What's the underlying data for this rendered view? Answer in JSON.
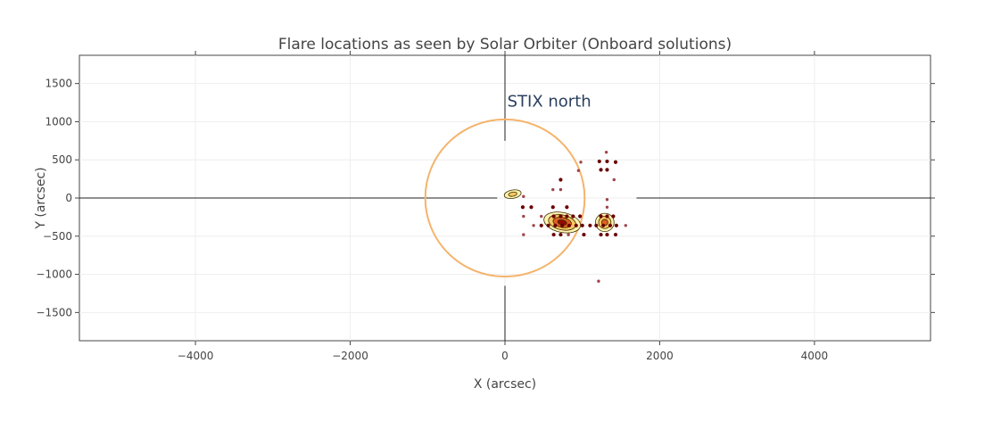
{
  "chart_data": {
    "type": "scatter",
    "title": "Flare locations as seen by Solar Orbiter (Onboard solutions)",
    "xlabel": "X (arcsec)",
    "ylabel": "Y (arcsec)",
    "xlim": [
      -5500,
      5500
    ],
    "ylim": [
      -1870,
      1870
    ],
    "x_ticks": [
      -4000,
      -2000,
      0,
      2000,
      4000
    ],
    "y_ticks": [
      1500,
      1000,
      500,
      0,
      -500,
      -1000,
      -1500
    ],
    "x_tick_labels": [
      "−4000",
      "−2000",
      "0",
      "2000",
      "4000"
    ],
    "y_tick_labels": [
      "1500",
      "1000",
      "500",
      "0",
      "−500",
      "−1000",
      "−1500"
    ],
    "grid": true,
    "annotation": "STIX north",
    "solar_disk": {
      "center": [
        0,
        0
      ],
      "radius": 1030,
      "color": "#f5b36b"
    },
    "colors": {
      "point_dark": "#6b0000",
      "point_light": "#a0454a",
      "contour_fill": "#fff2a8",
      "contour_line": "#3d3000",
      "contour_core": "#8b0000"
    },
    "points": [
      {
        "x": 980,
        "y": 470,
        "c": "light"
      },
      {
        "x": 1310,
        "y": 600,
        "c": "light"
      },
      {
        "x": 1220,
        "y": 480,
        "c": "dark"
      },
      {
        "x": 1320,
        "y": 480,
        "c": "dark"
      },
      {
        "x": 1430,
        "y": 470,
        "c": "dark"
      },
      {
        "x": 1240,
        "y": 370,
        "c": "dark"
      },
      {
        "x": 1320,
        "y": 370,
        "c": "dark"
      },
      {
        "x": 950,
        "y": 360,
        "c": "light"
      },
      {
        "x": 720,
        "y": 240,
        "c": "dark"
      },
      {
        "x": 1410,
        "y": 240,
        "c": "light"
      },
      {
        "x": 620,
        "y": 110,
        "c": "light"
      },
      {
        "x": 720,
        "y": 110,
        "c": "light"
      },
      {
        "x": 240,
        "y": 20,
        "c": "light"
      },
      {
        "x": 1320,
        "y": -20,
        "c": "light"
      },
      {
        "x": 230,
        "y": -120,
        "c": "dark"
      },
      {
        "x": 340,
        "y": -120,
        "c": "dark"
      },
      {
        "x": 620,
        "y": -120,
        "c": "dark"
      },
      {
        "x": 800,
        "y": -120,
        "c": "dark"
      },
      {
        "x": 1320,
        "y": -120,
        "c": "light"
      },
      {
        "x": 240,
        "y": -240,
        "c": "light"
      },
      {
        "x": 470,
        "y": -240,
        "c": "light"
      },
      {
        "x": 630,
        "y": -240,
        "c": "dark"
      },
      {
        "x": 720,
        "y": -240,
        "c": "dark"
      },
      {
        "x": 800,
        "y": -240,
        "c": "dark"
      },
      {
        "x": 880,
        "y": -240,
        "c": "dark"
      },
      {
        "x": 970,
        "y": -240,
        "c": "dark"
      },
      {
        "x": 1240,
        "y": -240,
        "c": "dark"
      },
      {
        "x": 1320,
        "y": -240,
        "c": "dark"
      },
      {
        "x": 1400,
        "y": -240,
        "c": "dark"
      },
      {
        "x": 370,
        "y": -360,
        "c": "light"
      },
      {
        "x": 470,
        "y": -360,
        "c": "dark"
      },
      {
        "x": 560,
        "y": -360,
        "c": "dark"
      },
      {
        "x": 650,
        "y": -360,
        "c": "dark"
      },
      {
        "x": 740,
        "y": -360,
        "c": "dark"
      },
      {
        "x": 830,
        "y": -360,
        "c": "dark"
      },
      {
        "x": 920,
        "y": -360,
        "c": "dark"
      },
      {
        "x": 1000,
        "y": -360,
        "c": "dark"
      },
      {
        "x": 1100,
        "y": -360,
        "c": "dark"
      },
      {
        "x": 1180,
        "y": -360,
        "c": "dark"
      },
      {
        "x": 1270,
        "y": -360,
        "c": "dark"
      },
      {
        "x": 1360,
        "y": -360,
        "c": "dark"
      },
      {
        "x": 1440,
        "y": -360,
        "c": "dark"
      },
      {
        "x": 1560,
        "y": -360,
        "c": "light"
      },
      {
        "x": 240,
        "y": -480,
        "c": "light"
      },
      {
        "x": 630,
        "y": -480,
        "c": "dark"
      },
      {
        "x": 720,
        "y": -480,
        "c": "dark"
      },
      {
        "x": 820,
        "y": -480,
        "c": "light"
      },
      {
        "x": 1020,
        "y": -480,
        "c": "dark"
      },
      {
        "x": 1240,
        "y": -480,
        "c": "dark"
      },
      {
        "x": 1320,
        "y": -480,
        "c": "dark"
      },
      {
        "x": 1430,
        "y": -480,
        "c": "dark"
      },
      {
        "x": 1210,
        "y": -1090,
        "c": "light"
      }
    ],
    "contours": [
      {
        "x": 100,
        "y": 50,
        "rx": 110,
        "ry": 55,
        "rot": -10,
        "levels": 2
      },
      {
        "x": 740,
        "y": -320,
        "rx": 240,
        "ry": 130,
        "rot": 12,
        "levels": 4
      },
      {
        "x": 1290,
        "y": -320,
        "rx": 120,
        "ry": 120,
        "rot": 0,
        "levels": 3
      }
    ]
  }
}
